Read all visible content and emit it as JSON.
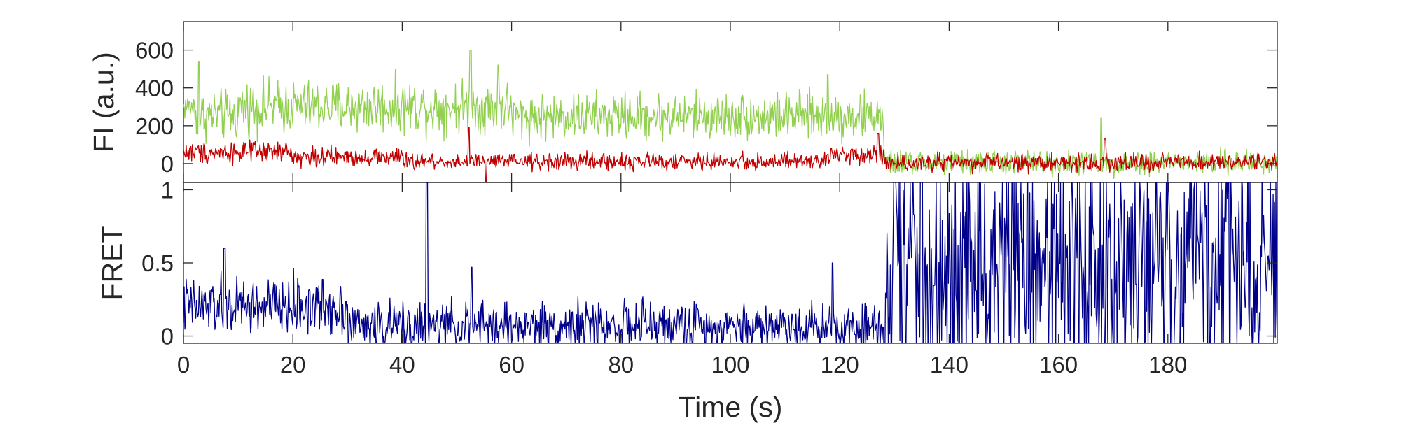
{
  "chart_data": [
    {
      "type": "line",
      "panel": "intensity",
      "ylabel": "FI (a.u.)",
      "xlabel": "",
      "xlim": [
        0,
        200
      ],
      "ylim": [
        -100,
        750
      ],
      "yticks": [
        0,
        200,
        400,
        600
      ],
      "ytick_labels": [
        "0",
        "200",
        "400",
        "600"
      ],
      "grid": false,
      "series": [
        {
          "role": "donor",
          "color": "#92d050",
          "segments": [
            {
              "x0": 0,
              "x1": 2,
              "base": 300,
              "noise": 45
            },
            {
              "x0": 2,
              "x1": 10,
              "base": 255,
              "noise": 80
            },
            {
              "x0": 10,
              "x1": 60,
              "base": 300,
              "noise": 85
            },
            {
              "x0": 60,
              "x1": 128,
              "base": 250,
              "noise": 75
            },
            {
              "x0": 128,
              "x1": 200,
              "base": 5,
              "noise": 40
            }
          ],
          "spikes": [
            [
              2.8,
              540
            ],
            [
              52.5,
              600
            ],
            [
              57.6,
              520
            ],
            [
              117.8,
              470
            ],
            [
              167.8,
              240
            ]
          ]
        },
        {
          "role": "acceptor",
          "color": "#c00000",
          "segments": [
            {
              "x0": 0,
              "x1": 20,
              "base": 60,
              "noise": 35
            },
            {
              "x0": 20,
              "x1": 40,
              "base": 35,
              "noise": 30
            },
            {
              "x0": 40,
              "x1": 118,
              "base": 10,
              "noise": 28
            },
            {
              "x0": 118,
              "x1": 128,
              "base": 50,
              "noise": 30
            },
            {
              "x0": 128,
              "x1": 200,
              "base": 5,
              "noise": 28
            }
          ],
          "spikes": [
            [
              52.2,
              190
            ],
            [
              55.3,
              -95
            ],
            [
              127,
              160
            ],
            [
              168.5,
              130
            ]
          ]
        }
      ]
    },
    {
      "type": "line",
      "panel": "fret",
      "ylabel": "FRET",
      "xlabel": "Time (s)",
      "xlim": [
        0,
        200
      ],
      "ylim": [
        -0.05,
        1.05
      ],
      "xticks": [
        0,
        20,
        40,
        60,
        80,
        100,
        120,
        140,
        160,
        180
      ],
      "xtick_labels": [
        "0",
        "20",
        "40",
        "60",
        "80",
        "100",
        "120",
        "140",
        "160",
        "180"
      ],
      "yticks": [
        0,
        0.5,
        1
      ],
      "ytick_labels": [
        "0",
        "0.5",
        "1"
      ],
      "grid": false,
      "series": [
        {
          "role": "fret",
          "color": "#00008b",
          "segments": [
            {
              "x0": 0,
              "x1": 30,
              "base": 0.2,
              "noise": 0.12
            },
            {
              "x0": 30,
              "x1": 128,
              "base": 0.07,
              "noise": 0.1
            },
            {
              "x0": 128,
              "x1": 200,
              "base": 0.45,
              "noise": 0.45
            }
          ],
          "spikes": [
            [
              7.5,
              0.6
            ],
            [
              44.5,
              1.05
            ],
            [
              52.7,
              0.47
            ],
            [
              118.7,
              0.5
            ],
            [
              130,
              1.05
            ],
            [
              135,
              1.05
            ]
          ]
        }
      ]
    }
  ]
}
